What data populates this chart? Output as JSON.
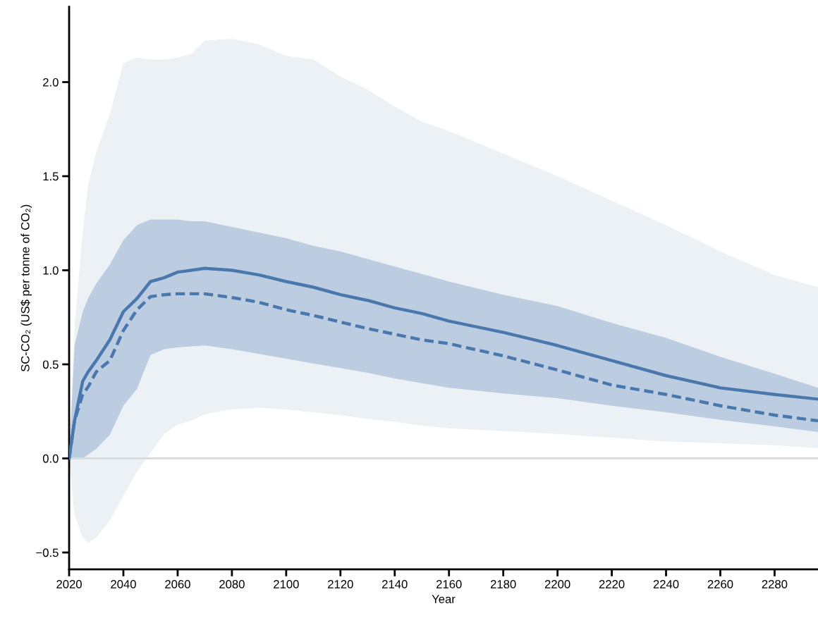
{
  "chart_data": {
    "type": "line",
    "xlabel": "Year",
    "ylabel": "SC-CO₂ (US$ per tonne of CO₂)",
    "xlim": [
      2020,
      2296
    ],
    "ylim": [
      -0.59,
      2.4
    ],
    "xticks": [
      2020,
      2040,
      2060,
      2080,
      2100,
      2120,
      2140,
      2160,
      2180,
      2200,
      2220,
      2240,
      2260,
      2280
    ],
    "yticks": [
      {
        "value": -0.5,
        "label": "−0.5"
      },
      {
        "value": 0,
        "label": "0.0"
      },
      {
        "value": 0.5,
        "label": "0.5"
      },
      {
        "value": 1.0,
        "label": "1.0"
      },
      {
        "value": 1.5,
        "label": "1.5"
      },
      {
        "value": 2.0,
        "label": "2.0"
      }
    ],
    "grid": false,
    "ref_lines": [
      {
        "axis": "y",
        "value": 0,
        "color": "#d9d9d9"
      }
    ],
    "x": [
      2020,
      2022,
      2025,
      2027,
      2030,
      2035,
      2040,
      2045,
      2050,
      2055,
      2060,
      2065,
      2070,
      2080,
      2090,
      2100,
      2110,
      2120,
      2130,
      2140,
      2150,
      2160,
      2180,
      2200,
      2220,
      2240,
      2260,
      2280,
      2296
    ],
    "series": [
      {
        "color": "#4a78ad",
        "line_style": "dashed",
        "values": [
          0,
          0.2,
          0.34,
          0.38,
          0.46,
          0.52,
          0.68,
          0.79,
          0.86,
          0.87,
          0.875,
          0.875,
          0.875,
          0.855,
          0.83,
          0.79,
          0.76,
          0.725,
          0.69,
          0.66,
          0.63,
          0.61,
          0.545,
          0.47,
          0.39,
          0.34,
          0.28,
          0.23,
          0.2
        ],
        "upper": [
          0,
          0.7,
          1.2,
          1.45,
          1.63,
          1.83,
          2.1,
          2.13,
          2.12,
          2.12,
          2.13,
          2.15,
          2.22,
          2.23,
          2.2,
          2.14,
          2.12,
          2.03,
          1.96,
          1.87,
          1.79,
          1.74,
          1.62,
          1.5,
          1.37,
          1.24,
          1.1,
          0.975,
          0.91
        ],
        "lower": [
          0,
          -0.3,
          -0.42,
          -0.45,
          -0.42,
          -0.33,
          -0.2,
          -0.07,
          0.03,
          0.13,
          0.18,
          0.2,
          0.235,
          0.26,
          0.27,
          0.26,
          0.245,
          0.23,
          0.21,
          0.195,
          0.175,
          0.16,
          0.145,
          0.13,
          0.11,
          0.09,
          0.08,
          0.07,
          0.055
        ]
      },
      {
        "color": "#4a78ad",
        "line_style": "solid",
        "values": [
          0,
          0.2,
          0.41,
          0.46,
          0.52,
          0.63,
          0.78,
          0.85,
          0.94,
          0.96,
          0.99,
          1.0,
          1.01,
          1.0,
          0.975,
          0.94,
          0.91,
          0.87,
          0.84,
          0.8,
          0.77,
          0.73,
          0.67,
          0.6,
          0.52,
          0.44,
          0.375,
          0.34,
          0.315
        ],
        "upper": [
          0,
          0.6,
          0.78,
          0.85,
          0.93,
          1.03,
          1.16,
          1.24,
          1.27,
          1.27,
          1.27,
          1.26,
          1.26,
          1.23,
          1.2,
          1.17,
          1.13,
          1.1,
          1.06,
          1.02,
          0.98,
          0.94,
          0.87,
          0.81,
          0.72,
          0.64,
          0.54,
          0.45,
          0.375
        ],
        "lower": [
          0,
          -0.005,
          0.0,
          0.02,
          0.05,
          0.125,
          0.28,
          0.37,
          0.55,
          0.58,
          0.59,
          0.595,
          0.6,
          0.58,
          0.555,
          0.53,
          0.505,
          0.48,
          0.455,
          0.425,
          0.4,
          0.375,
          0.345,
          0.32,
          0.28,
          0.245,
          0.205,
          0.17,
          0.14
        ]
      }
    ]
  }
}
